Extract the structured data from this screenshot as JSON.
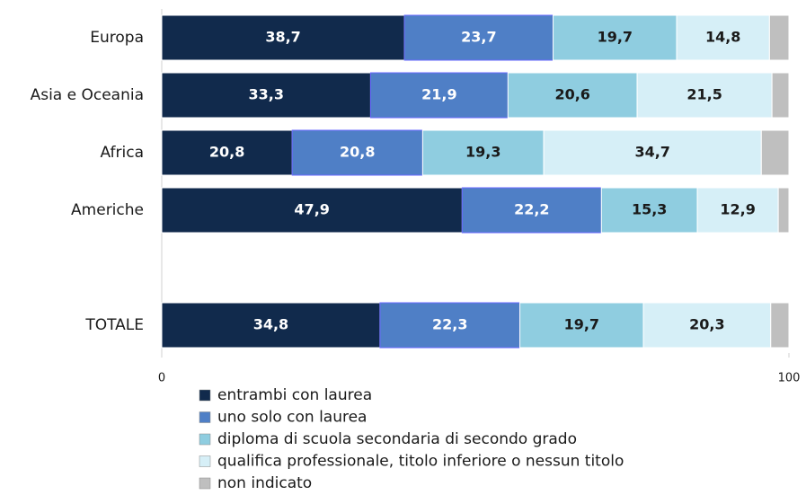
{
  "chart_data": {
    "type": "stacked-bar-horizontal",
    "categories": [
      "Europa",
      "Asia e Oceania",
      "Africa",
      "Americhe",
      null,
      "TOTALE"
    ],
    "series": [
      {
        "name": "entrambi con laurea",
        "color": "#112a4c",
        "text_color": "#ffffff",
        "values": [
          38.7,
          33.3,
          20.8,
          47.9,
          null,
          34.8
        ],
        "value_labels": [
          "38,7",
          "33,3",
          "20,8",
          "47,9",
          null,
          "34,8"
        ]
      },
      {
        "name": "uno solo con laurea",
        "color": "#4f7fc6",
        "text_color": "#ffffff",
        "values": [
          23.7,
          21.9,
          20.8,
          22.2,
          null,
          22.3
        ],
        "value_labels": [
          "23,7",
          "21,9",
          "20,8",
          "22,2",
          null,
          "22,3"
        ]
      },
      {
        "name": "diploma di scuola secondaria di secondo grado",
        "color": "#8fcde0",
        "text_color": "#1a1a1a",
        "values": [
          19.7,
          20.6,
          19.3,
          15.3,
          null,
          19.7
        ],
        "value_labels": [
          "19,7",
          "20,6",
          "19,3",
          "15,3",
          null,
          "19,7"
        ]
      },
      {
        "name": "qualifica professionale, titolo inferiore o nessun titolo",
        "color": "#d6eff7",
        "text_color": "#1a1a1a",
        "values": [
          14.8,
          21.5,
          34.7,
          12.9,
          null,
          20.3
        ],
        "value_labels": [
          "14,8",
          "21,5",
          "34,7",
          "12,9",
          null,
          "20,3"
        ]
      },
      {
        "name": "non indicato",
        "color": "#bfbfbf",
        "values": [
          3.1,
          2.7,
          4.4,
          1.7,
          null,
          2.9
        ]
      }
    ],
    "xlim": [
      0,
      100
    ],
    "xticks": [
      0,
      100
    ]
  }
}
